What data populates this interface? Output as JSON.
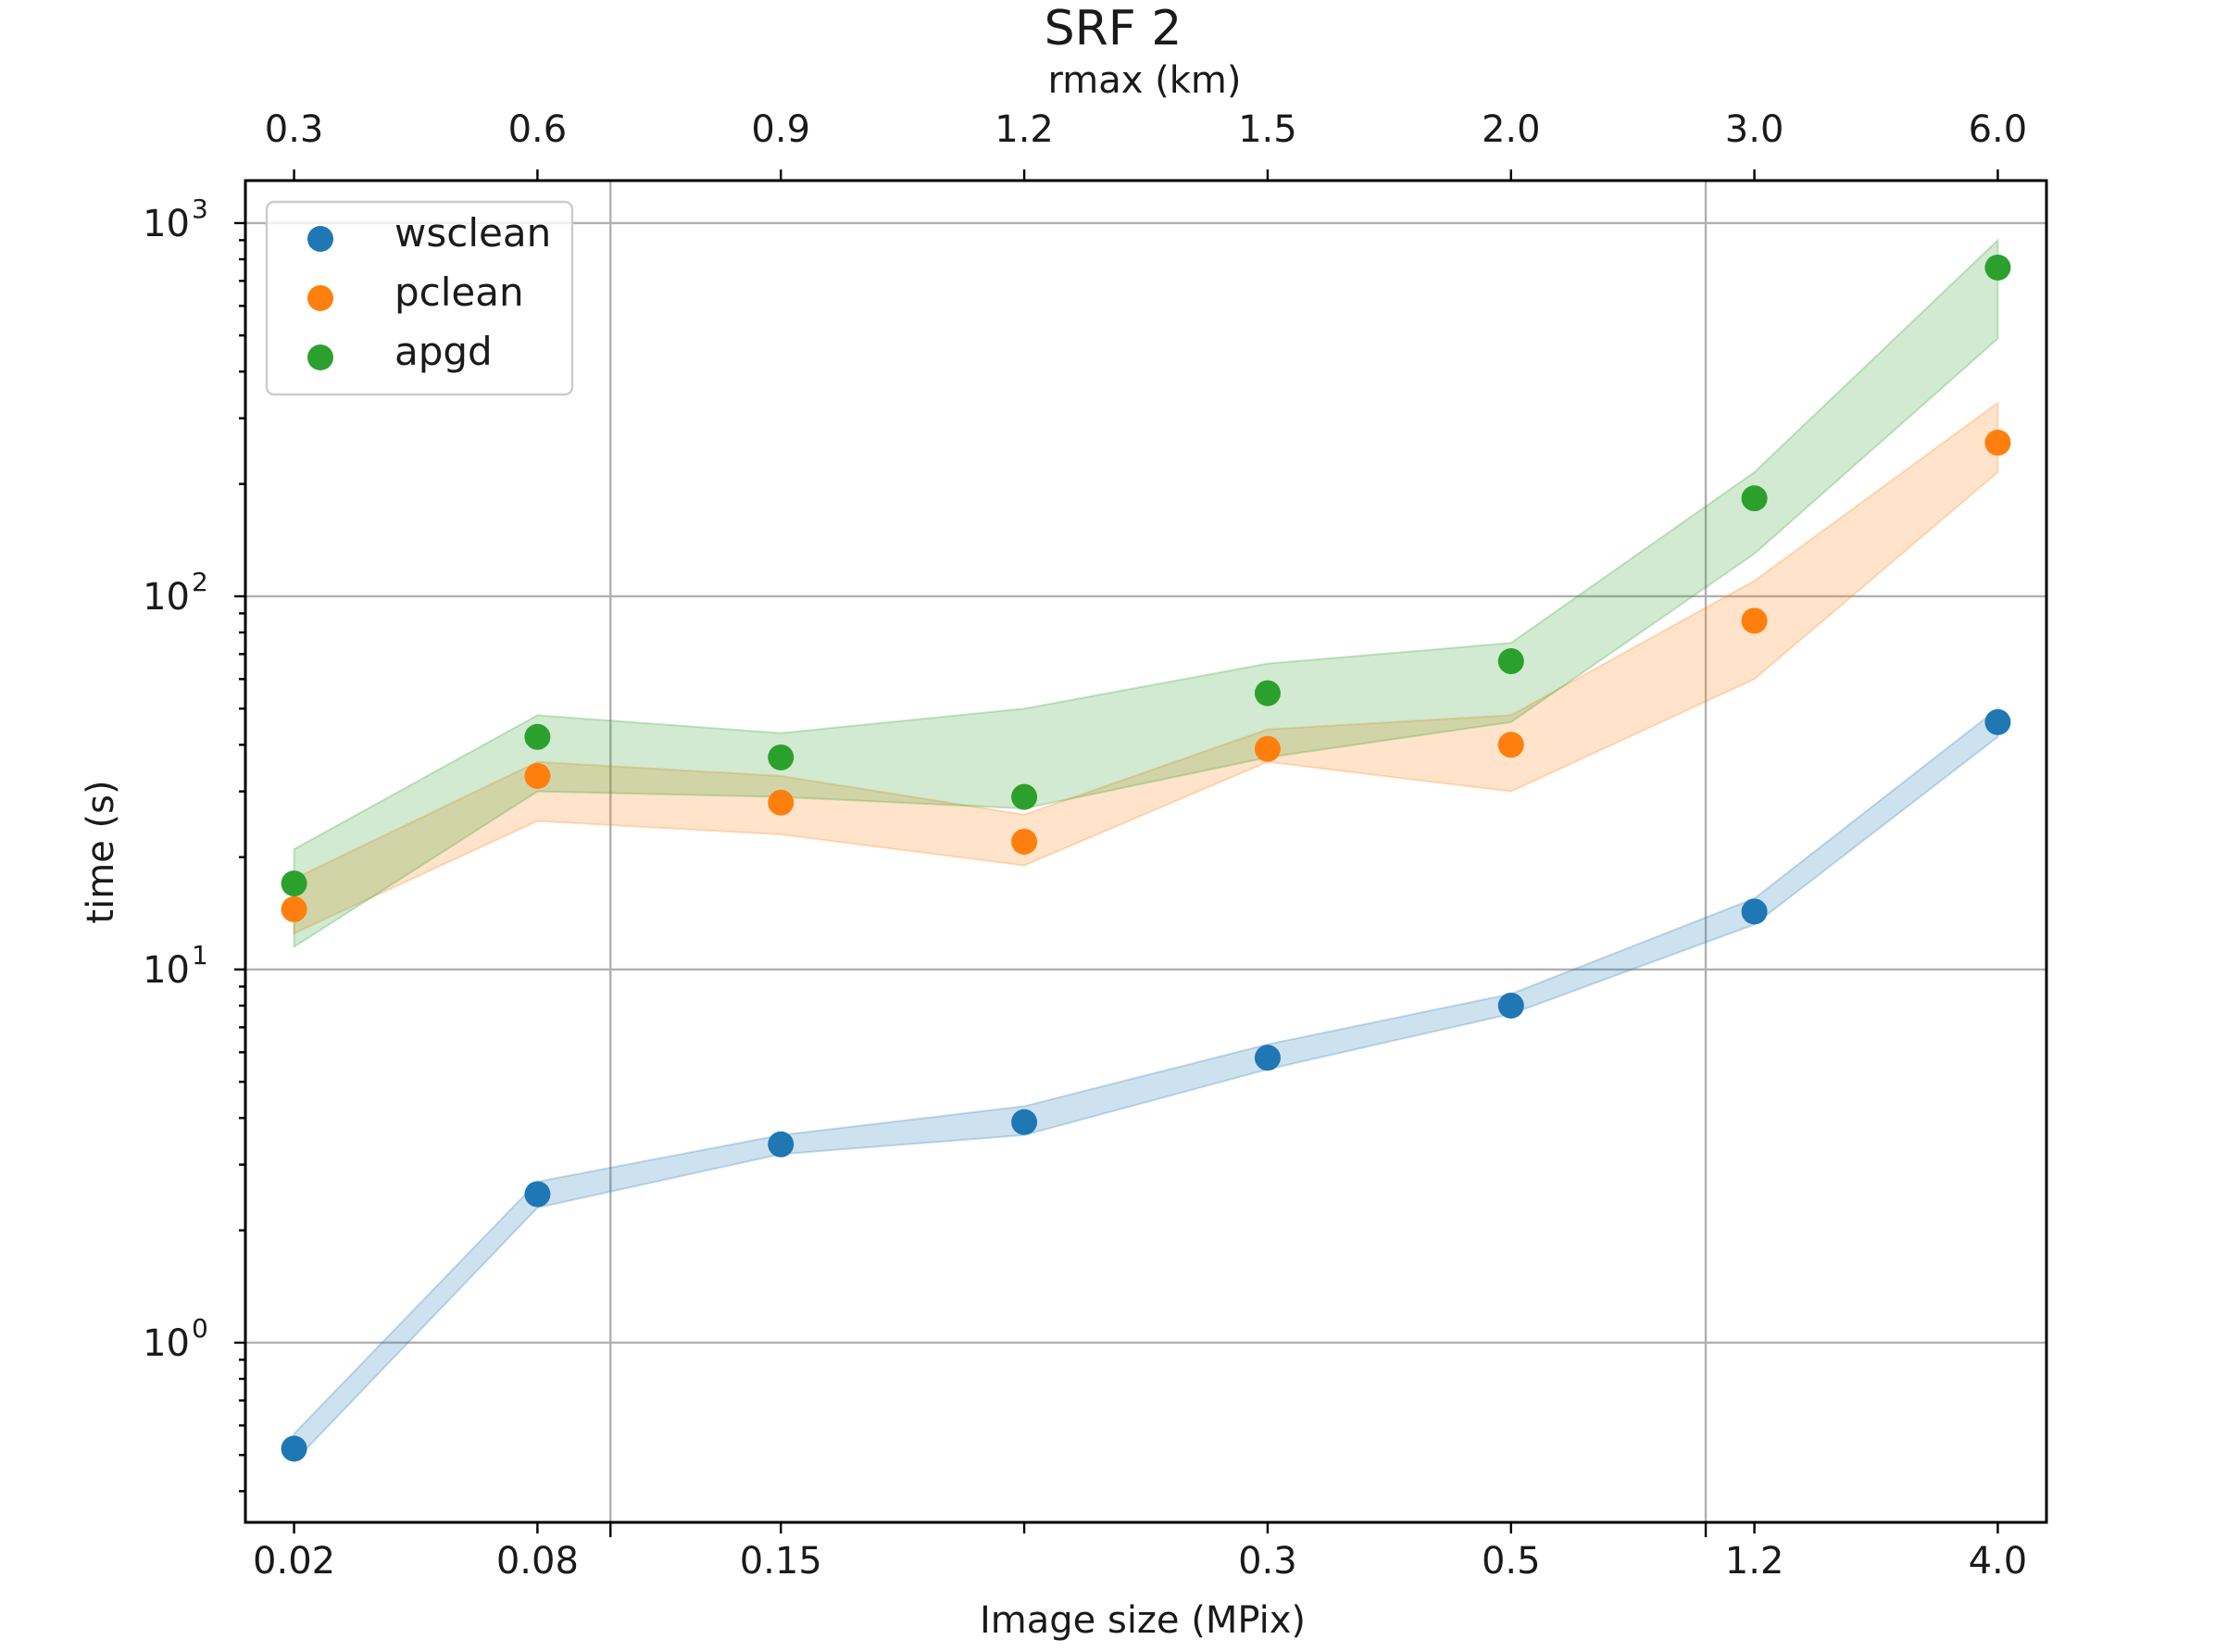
{
  "chart_data": {
    "type": "scatter",
    "title": "SRF 2",
    "xlabel": "Image size (MPix)",
    "ylabel": "time (s)",
    "top_xlabel": "rmax (km)",
    "yscale": "log",
    "ylim": [
      0.33,
      1300
    ],
    "y_ticks": [
      {
        "value": 1,
        "base": "10",
        "exp": "0"
      },
      {
        "value": 10,
        "base": "10",
        "exp": "1"
      },
      {
        "value": 100,
        "base": "10",
        "exp": "2"
      },
      {
        "value": 1000,
        "base": "10",
        "exp": "3"
      }
    ],
    "x_index_range": [
      -0.2,
      7.2
    ],
    "x_vertical_grid_at_index": [
      1.3,
      5.8
    ],
    "x_tick_labels": [
      "0.02",
      "0.08",
      "0.15",
      "",
      "0.3",
      "0.5",
      "1.2",
      "4.0"
    ],
    "top_x_tick_labels": [
      "0.3",
      "0.6",
      "0.9",
      "1.2",
      "1.5",
      "2.0",
      "3.0",
      "6.0"
    ],
    "grid": true,
    "legend_position": "upper-left",
    "series": [
      {
        "name": "wsclean",
        "color": "#1f77b4",
        "values": [
          0.52,
          2.5,
          3.4,
          3.9,
          5.8,
          8.0,
          14.3,
          46
        ],
        "band_low": [
          0.48,
          2.3,
          3.2,
          3.6,
          5.4,
          7.6,
          13.2,
          42
        ],
        "band_high": [
          0.57,
          2.7,
          3.6,
          4.3,
          6.3,
          8.6,
          15.5,
          50
        ]
      },
      {
        "name": "pclean",
        "color": "#ff7f0e",
        "values": [
          14.5,
          33,
          28,
          22,
          39,
          40,
          86,
          258
        ],
        "band_low": [
          12.5,
          25,
          23,
          19,
          36,
          30,
          60,
          215
        ],
        "band_high": [
          17.5,
          36,
          33,
          26,
          44,
          48,
          110,
          330
        ]
      },
      {
        "name": "apgd",
        "color": "#2ca02c",
        "values": [
          17,
          42,
          37,
          29,
          55,
          67,
          183,
          760
        ],
        "band_low": [
          11.5,
          30,
          29,
          27,
          37,
          46,
          130,
          490
        ],
        "band_high": [
          21,
          48,
          43,
          50,
          66,
          75,
          215,
          900
        ]
      }
    ]
  }
}
